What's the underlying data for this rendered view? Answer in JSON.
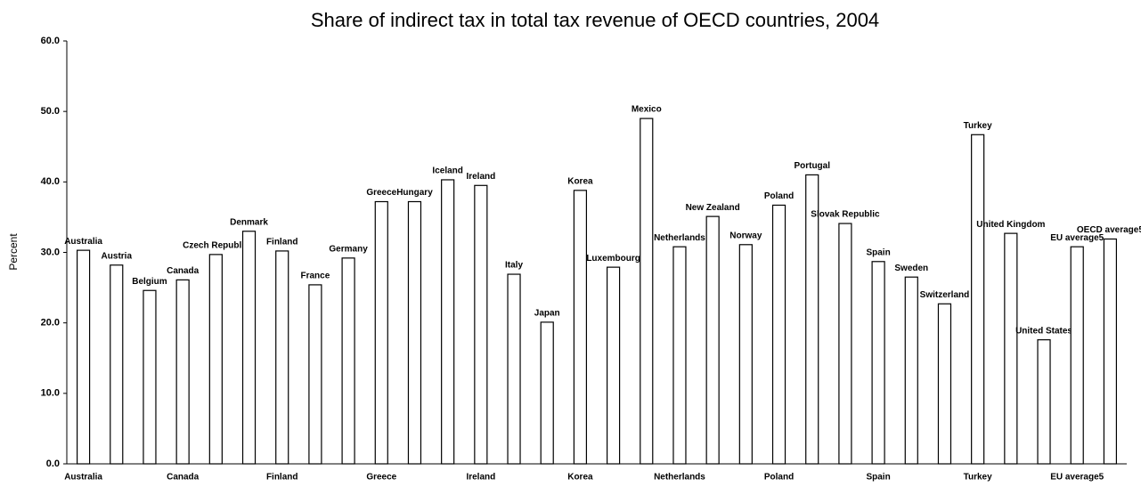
{
  "chart_data": {
    "type": "bar",
    "title": "Share of indirect tax in total tax revenue of OECD countries, 2004",
    "y_label": "Percent",
    "categories": [
      "Australia",
      "Austria",
      "Belgium",
      "Canada",
      "Czech Republic",
      "Denmark",
      "Finland",
      "France",
      "Germany",
      "Greece",
      "Hungary",
      "Iceland",
      "Ireland",
      "Italy",
      "Japan",
      "Korea",
      "Luxembourg",
      "Mexico",
      "Netherlands",
      "New Zealand",
      "Norway",
      "Poland",
      "Portugal",
      "Slovak Republic",
      "Spain",
      "Sweden",
      "Switzerland",
      "Turkey",
      "United Kingdom",
      "United States",
      "EU average5",
      "OECD average5"
    ],
    "values": [
      30.3,
      28.2,
      24.6,
      26.1,
      29.7,
      33.0,
      30.2,
      25.4,
      29.2,
      37.2,
      37.2,
      40.3,
      39.5,
      26.9,
      20.1,
      38.8,
      27.9,
      49.0,
      30.8,
      35.1,
      31.1,
      36.7,
      41.0,
      34.1,
      28.7,
      26.5,
      22.7,
      46.7,
      32.7,
      17.6,
      30.8,
      31.9
    ],
    "color": "#ffffff",
    "ylim": [
      0,
      60
    ],
    "yticks": [
      {
        "value": 0,
        "label": "0.0"
      },
      {
        "value": 10,
        "label": "10.0"
      },
      {
        "value": 20,
        "label": "20.0"
      },
      {
        "value": 30,
        "label": "30.0"
      },
      {
        "value": 40,
        "label": "40.0"
      },
      {
        "value": 50,
        "label": "50.0"
      },
      {
        "value": 60,
        "label": "60.0"
      }
    ],
    "grid": false
  }
}
